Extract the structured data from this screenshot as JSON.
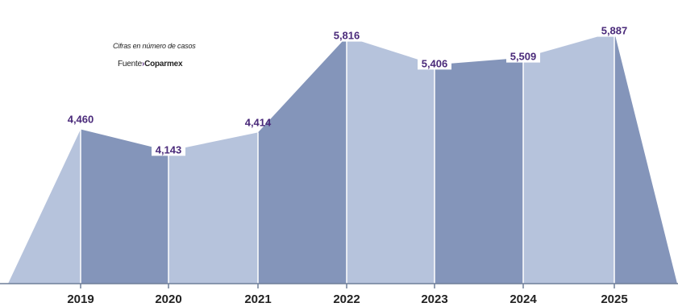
{
  "note": "Cifras en número de casos",
  "source": {
    "label": "Fuente",
    "name": "Coparmex"
  },
  "colors": {
    "light": "#b6c3dc",
    "dark": "#8495ba",
    "label": "#4a2a7a",
    "source_arrow": "#5a2d82"
  },
  "chart_data": {
    "type": "area",
    "categories": [
      "2019",
      "2020",
      "2021",
      "2022",
      "2023",
      "2024",
      "2025"
    ],
    "values": [
      4460,
      4143,
      4414,
      5816,
      5406,
      5509,
      5887
    ],
    "labels": [
      "4,460",
      "4,143",
      "4,414",
      "5,816",
      "5,406",
      "5,509",
      "5,887"
    ],
    "ylim": [
      2200,
      6000
    ],
    "grid": false,
    "legend": "none"
  }
}
